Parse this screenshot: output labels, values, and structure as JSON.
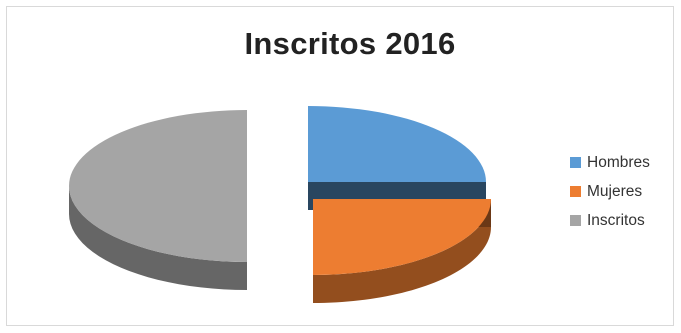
{
  "chart_data": {
    "type": "pie",
    "style": "3d-exploded",
    "title": "Inscritos 2016",
    "slices": [
      {
        "label": "Hombres",
        "value": 25,
        "color": "#5b9bd5"
      },
      {
        "label": "Mujeres",
        "value": 25,
        "color": "#ed7d31"
      },
      {
        "label": "Inscritos",
        "value": 50,
        "color": "#a5a5a5"
      }
    ],
    "legend_position": "right"
  }
}
